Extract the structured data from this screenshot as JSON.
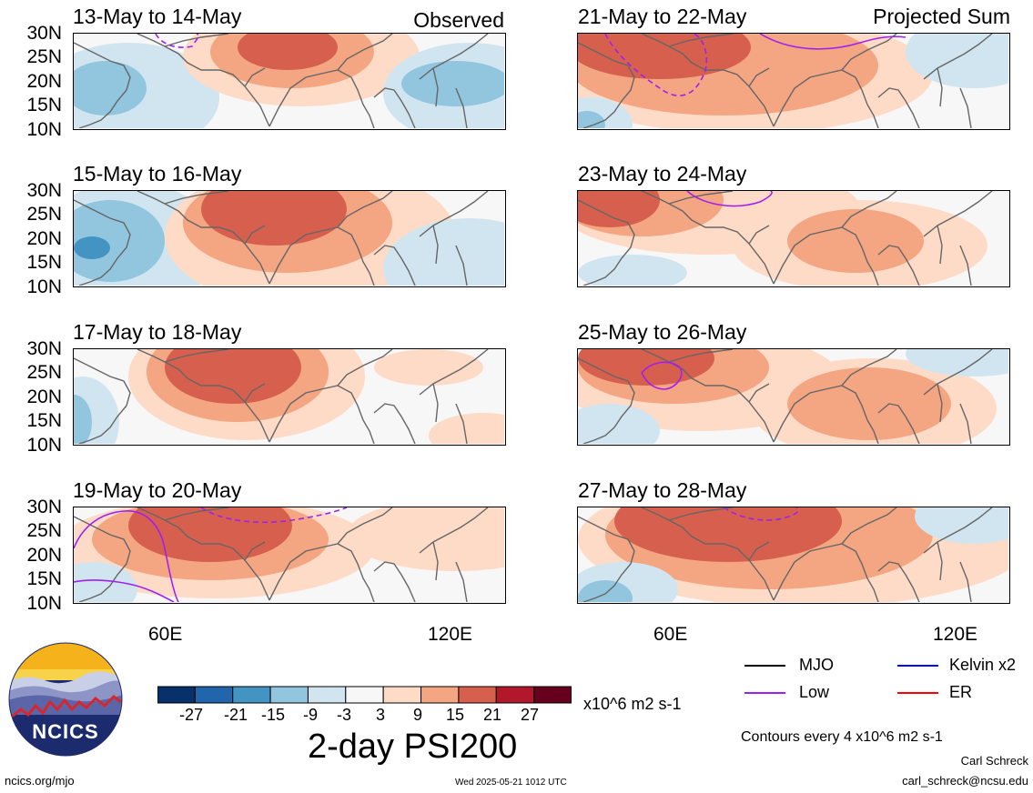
{
  "header": {
    "left_tag": "Observed",
    "right_tag": "Projected Sum"
  },
  "lat_labels": [
    "30N",
    "25N",
    "20N",
    "15N",
    "10N"
  ],
  "lon_labels": [
    "60E",
    "120E"
  ],
  "panels": [
    {
      "title": "13-May to 14-May"
    },
    {
      "title": "15-May to 16-May"
    },
    {
      "title": "17-May to 18-May"
    },
    {
      "title": "19-May to 20-May"
    },
    {
      "title": "21-May to 22-May"
    },
    {
      "title": "23-May to 24-May"
    },
    {
      "title": "25-May to 26-May"
    },
    {
      "title": "27-May to 28-May"
    }
  ],
  "colorbar": {
    "tick_labels": [
      "-27",
      "-21",
      "-15",
      "-9",
      "-3",
      "3",
      "9",
      "15",
      "21",
      "27"
    ],
    "colors": [
      "#08306b",
      "#2166ac",
      "#4393c3",
      "#92c5de",
      "#d1e5f0",
      "#f7f7f7",
      "#fddbc7",
      "#f4a582",
      "#d6604d",
      "#b2182b",
      "#67001f"
    ],
    "units": "x10^6 m2 s-1",
    "title": "2-day PSI200"
  },
  "line_legend": [
    {
      "label": "MJO",
      "color": "#000000"
    },
    {
      "label": "Kelvin x2",
      "color": "#0000ff"
    },
    {
      "label": "Low",
      "color": "#a020f0"
    },
    {
      "label": "ER",
      "color": "#ff0000"
    }
  ],
  "footer": {
    "contours": "Contours every 4 x10^6 m2 s-1",
    "author": "Carl Schreck",
    "email": "carl_schreck@ncsu.edu",
    "site": "ncics.org/mjo",
    "timestamp": "Wed 2025-05-21 1012 UTC",
    "logo_text": "NCICS"
  }
}
